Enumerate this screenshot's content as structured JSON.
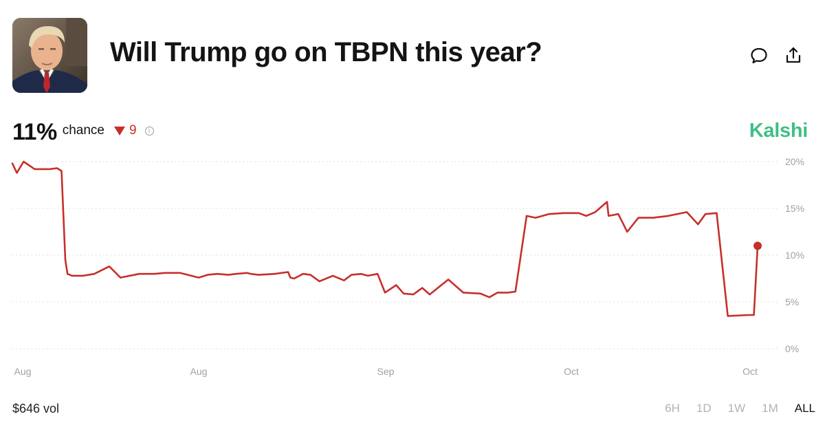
{
  "header": {
    "title": "Will Trump go on TBPN this year?"
  },
  "stats": {
    "probability": "11%",
    "chance_label": "chance",
    "change": "9",
    "change_direction": "down",
    "info_glyph": "i"
  },
  "brand": "Kalshi",
  "footer": {
    "volume": "$646 vol",
    "ranges": [
      "6H",
      "1D",
      "1W",
      "1M",
      "ALL"
    ],
    "active_range": "ALL"
  },
  "colors": {
    "line": "#c62f2a",
    "brand": "#3fbf84",
    "grid": "#d4d4d4",
    "axis_text": "#a0a0a0"
  },
  "icons": [
    "comment-icon",
    "share-icon",
    "info-icon",
    "caret-down-icon"
  ],
  "chart_data": {
    "type": "line",
    "title": "",
    "xlabel": "",
    "ylabel": "",
    "ylim": [
      0,
      20
    ],
    "yticks": [
      0,
      5,
      10,
      15,
      20
    ],
    "ytick_labels": [
      "0%",
      "5%",
      "10%",
      "15%",
      "20%"
    ],
    "xtick_labels": [
      "Aug",
      "Aug",
      "Sep",
      "Oct",
      "Oct"
    ],
    "grid": true,
    "legend": "none",
    "series": [
      {
        "color": "#c62f2a",
        "t": [
          0,
          0.006,
          0.015,
          0.03,
          0.05,
          0.06,
          0.066,
          0.071,
          0.074,
          0.077,
          0.08,
          0.095,
          0.11,
          0.13,
          0.145,
          0.17,
          0.19,
          0.205,
          0.225,
          0.25,
          0.262,
          0.275,
          0.29,
          0.3,
          0.315,
          0.32,
          0.33,
          0.352,
          0.37,
          0.373,
          0.378,
          0.39,
          0.4,
          0.412,
          0.43,
          0.445,
          0.455,
          0.468,
          0.477,
          0.49,
          0.5,
          0.515,
          0.525,
          0.538,
          0.55,
          0.56,
          0.585,
          0.605,
          0.628,
          0.64,
          0.651,
          0.655,
          0.665,
          0.675,
          0.69,
          0.702,
          0.72,
          0.74,
          0.76,
          0.77,
          0.782,
          0.798,
          0.8,
          0.813,
          0.825,
          0.84,
          0.86,
          0.88,
          0.905,
          0.92,
          0.93,
          0.945,
          0.96,
          0.988,
          0.995,
          1.0
        ],
        "values": [
          19.8,
          18.8,
          20.0,
          19.2,
          19.2,
          19.3,
          19.0,
          9.5,
          8.0,
          7.9,
          7.8,
          7.8,
          8.0,
          8.8,
          7.6,
          8.0,
          8.0,
          8.1,
          8.1,
          7.6,
          7.9,
          8.0,
          7.9,
          8.0,
          8.1,
          8.0,
          7.9,
          8.0,
          8.2,
          7.6,
          7.5,
          8.0,
          7.9,
          7.2,
          7.8,
          7.3,
          7.9,
          8.0,
          7.8,
          8.0,
          6.0,
          6.8,
          5.9,
          5.8,
          6.5,
          5.8,
          7.4,
          6.0,
          5.9,
          5.5,
          6.0,
          6.0,
          6.0,
          6.1,
          14.2,
          14.0,
          14.4,
          14.5,
          14.5,
          14.2,
          14.6,
          15.7,
          14.2,
          14.4,
          12.5,
          14.0,
          14.0,
          14.2,
          14.6,
          13.3,
          14.4,
          14.5,
          3.5,
          3.6,
          3.6,
          11.0
        ]
      }
    ]
  }
}
